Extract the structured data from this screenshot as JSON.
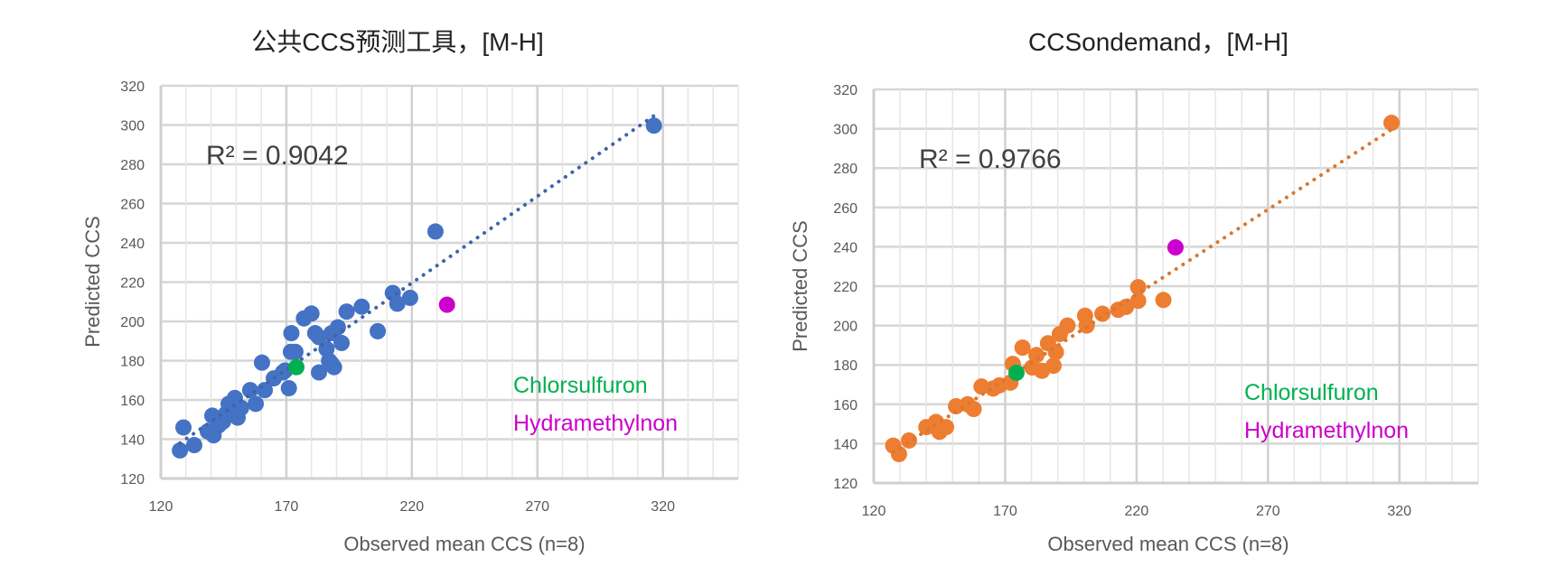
{
  "chart_data": [
    {
      "type": "scatter",
      "title": "公共CCS预测工具，[M-H]",
      "xlabel": "Observed mean CCS (n=8)",
      "ylabel": "Predicted CCS",
      "xlim": [
        120,
        350
      ],
      "ylim": [
        120,
        320
      ],
      "xticks": [
        120,
        170,
        220,
        270,
        320
      ],
      "yticks": [
        120,
        140,
        160,
        180,
        200,
        220,
        240,
        260,
        280,
        300,
        320
      ],
      "grid": true,
      "series_color": "#4472C4",
      "trendline": "linear, dotted",
      "r2_label": "R² = 0.9042",
      "points": [
        [
          127.6,
          134.3
        ],
        [
          129,
          146
        ],
        [
          133.3,
          137
        ],
        [
          138.7,
          144
        ],
        [
          141,
          142
        ],
        [
          140.5,
          152
        ],
        [
          144.8,
          149
        ],
        [
          147,
          158
        ],
        [
          149.5,
          161
        ],
        [
          150.6,
          151
        ],
        [
          143,
          147
        ],
        [
          146,
          153
        ],
        [
          152,
          156
        ],
        [
          155.6,
          165
        ],
        [
          157.8,
          158
        ],
        [
          160.3,
          179
        ],
        [
          161.4,
          165
        ],
        [
          165,
          171
        ],
        [
          168.6,
          174
        ],
        [
          171,
          166
        ],
        [
          169.5,
          175
        ],
        [
          172,
          194
        ],
        [
          171.8,
          184.5
        ],
        [
          173.6,
          184.5
        ],
        [
          177,
          201.5
        ],
        [
          180,
          204
        ],
        [
          183,
          174
        ],
        [
          181.5,
          194
        ],
        [
          183,
          192
        ],
        [
          186,
          186
        ],
        [
          188,
          194
        ],
        [
          188,
          178.5
        ],
        [
          189,
          176.7
        ],
        [
          187,
          180
        ],
        [
          190.5,
          197
        ],
        [
          192,
          189
        ],
        [
          194,
          205
        ],
        [
          200,
          207.5
        ],
        [
          206.4,
          195
        ],
        [
          212.4,
          214.5
        ],
        [
          214.2,
          209
        ],
        [
          219.3,
          212
        ],
        [
          229.4,
          245.8
        ],
        [
          316.4,
          299.7
        ]
      ],
      "highlights": [
        {
          "name": "Chlorsulfuron",
          "color": "#00B050",
          "x": 174,
          "y": 176.7
        },
        {
          "name": "Hydramethylnon",
          "color": "#CC00CC",
          "x": 234,
          "y": 208.5
        }
      ]
    },
    {
      "type": "scatter",
      "title": "CCSondemand，[M-H]",
      "xlabel": "Observed mean CCS (n=8)",
      "ylabel": "Predicted CCS",
      "xlim": [
        120,
        350
      ],
      "ylim": [
        120,
        320
      ],
      "xticks": [
        120,
        170,
        220,
        270,
        320
      ],
      "yticks": [
        120,
        140,
        160,
        180,
        200,
        220,
        240,
        260,
        280,
        300,
        320
      ],
      "grid": true,
      "series_color": "#ED7D31",
      "trendline": "linear, dotted",
      "r2_label": "R² = 0.9766",
      "points": [
        [
          127.4,
          139
        ],
        [
          129.6,
          134.7
        ],
        [
          133.4,
          141.6
        ],
        [
          140,
          148.4
        ],
        [
          143.7,
          151
        ],
        [
          147.5,
          148.4
        ],
        [
          145,
          146
        ],
        [
          151.3,
          159
        ],
        [
          155.7,
          160
        ],
        [
          158,
          157.6
        ],
        [
          161,
          169
        ],
        [
          165.4,
          168
        ],
        [
          167.8,
          169.6
        ],
        [
          172,
          171
        ],
        [
          172.9,
          180.5
        ],
        [
          176.6,
          188.8
        ],
        [
          180.3,
          178.7
        ],
        [
          181.9,
          185
        ],
        [
          184,
          177
        ],
        [
          188.4,
          179.6
        ],
        [
          186.3,
          191
        ],
        [
          189.3,
          186.5
        ],
        [
          190.8,
          195.7
        ],
        [
          193.7,
          200
        ],
        [
          200.4,
          205
        ],
        [
          201,
          200
        ],
        [
          207,
          206
        ],
        [
          213,
          208
        ],
        [
          216,
          209.5
        ],
        [
          220.6,
          212.6
        ],
        [
          220.6,
          219.5
        ],
        [
          230.2,
          213
        ],
        [
          317,
          303
        ]
      ],
      "highlights": [
        {
          "name": "Chlorsulfuron",
          "color": "#00B050",
          "x": 174.3,
          "y": 176
        },
        {
          "name": "Hydramethylnon",
          "color": "#CC00CC",
          "x": 234.8,
          "y": 239.7
        }
      ]
    }
  ]
}
